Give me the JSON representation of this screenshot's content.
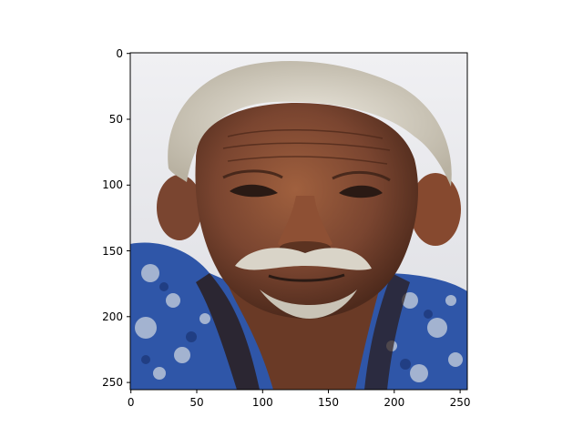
{
  "image_axes": {
    "x_ticks": [
      "0",
      "50",
      "100",
      "150",
      "200",
      "250"
    ],
    "y_ticks": [
      "0",
      "50",
      "100",
      "150",
      "200",
      "250"
    ],
    "x_tick_values": [
      0,
      50,
      100,
      150,
      200,
      250
    ],
    "y_tick_values": [
      0,
      50,
      100,
      150,
      200,
      250
    ],
    "x_range": [
      -0.5,
      255.5
    ],
    "y_range": [
      255.5,
      -0.5
    ]
  },
  "photo": {
    "subject": "portrait-elderly-man",
    "colors": {
      "background": "#e8e8ea",
      "hair": "#d6d1c4",
      "skin": "#7a4530",
      "skin_highlight": "#9c5a3a",
      "shirt_blue": "#2f56a8",
      "shirt_light": "#b8c4d8",
      "shadow": "#2a1a14"
    }
  }
}
